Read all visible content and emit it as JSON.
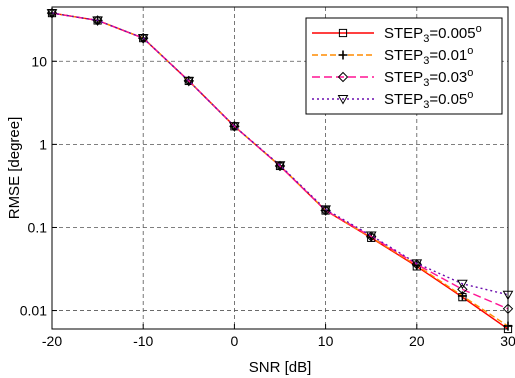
{
  "chart_data": {
    "type": "line",
    "title": "",
    "xlabel": "SNR [dB]",
    "ylabel": "RMSE [degree]",
    "xlim": [
      -20,
      30
    ],
    "ylim": [
      0.006,
      45
    ],
    "yscale": "log",
    "xticks": [
      -20,
      -10,
      0,
      10,
      20,
      30
    ],
    "xtick_labels": [
      "-20",
      "-10",
      "0",
      "10",
      "20",
      "30"
    ],
    "yticks": [
      0.01,
      0.1,
      1,
      10
    ],
    "ytick_labels": [
      "0.01",
      "0.1",
      "1",
      "10"
    ],
    "grid": true,
    "legend_position": "top-right",
    "x": [
      -20,
      -15,
      -10,
      -5,
      0,
      5,
      10,
      15,
      20,
      25,
      30
    ],
    "series": [
      {
        "name": "STEP",
        "name_sub": "3",
        "name_suffix": "=0.005",
        "name_sup": "o",
        "color": "#ff0000",
        "dash": "",
        "marker": "square",
        "values": [
          38,
          31,
          19,
          5.8,
          1.65,
          0.55,
          0.16,
          0.075,
          0.034,
          0.0145,
          0.006
        ]
      },
      {
        "name": "STEP",
        "name_sub": "3",
        "name_suffix": "=0.01",
        "name_sup": "o",
        "color": "#ff8c00",
        "dash": "6 3",
        "marker": "plus",
        "values": [
          38,
          31,
          19,
          5.8,
          1.65,
          0.55,
          0.16,
          0.076,
          0.035,
          0.015,
          0.0065
        ]
      },
      {
        "name": "STEP",
        "name_sub": "3",
        "name_suffix": "=0.03",
        "name_sup": "o",
        "color": "#ff1493",
        "dash": "8 4",
        "marker": "diamond",
        "values": [
          38,
          31,
          19,
          5.8,
          1.65,
          0.55,
          0.16,
          0.078,
          0.036,
          0.018,
          0.0105
        ]
      },
      {
        "name": "STEP",
        "name_sub": "3",
        "name_suffix": "=0.05",
        "name_sup": "o",
        "color": "#6a0dad",
        "dash": "2 3",
        "marker": "triangle-down",
        "values": [
          38,
          31,
          19,
          5.8,
          1.65,
          0.56,
          0.165,
          0.08,
          0.037,
          0.021,
          0.0155
        ]
      }
    ]
  }
}
